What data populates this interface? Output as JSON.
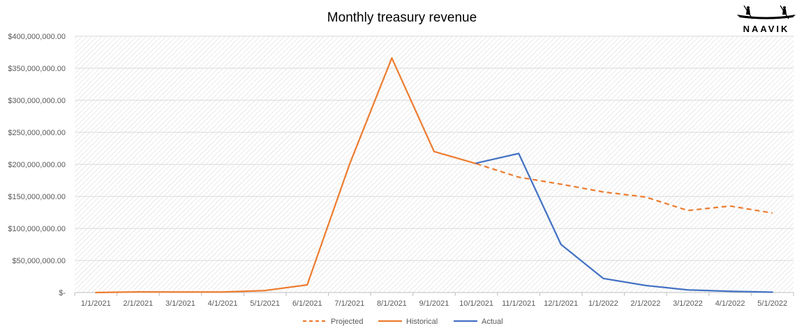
{
  "chart_data": {
    "type": "line",
    "title": "Monthly treasury revenue",
    "xlabel": "",
    "ylabel": "",
    "ylim": [
      0,
      400000000
    ],
    "yticks": [
      0,
      50000000,
      100000000,
      150000000,
      200000000,
      250000000,
      300000000,
      350000000,
      400000000
    ],
    "ytick_labels": [
      "$-",
      "$50,000,000.00",
      "$100,000,000.00",
      "$150,000,000.00",
      "$200,000,000.00",
      "$250,000,000.00",
      "$300,000,000.00",
      "$350,000,000.00",
      "$400,000,000.00"
    ],
    "categories": [
      "1/1/2021",
      "2/1/2021",
      "3/1/2021",
      "4/1/2021",
      "5/1/2021",
      "6/1/2021",
      "7/1/2021",
      "8/1/2021",
      "9/1/2021",
      "10/1/2021",
      "11/1/2021",
      "12/1/2021",
      "1/1/2022",
      "2/1/2022",
      "3/1/2022",
      "4/1/2022",
      "5/1/2022"
    ],
    "series": [
      {
        "name": "Projected",
        "color": "#ED7D31",
        "dash": "dashed",
        "values": [
          null,
          null,
          null,
          null,
          null,
          null,
          null,
          null,
          null,
          201000000,
          180000000,
          169000000,
          157000000,
          149000000,
          128000000,
          135000000,
          124000000
        ]
      },
      {
        "name": "Historical",
        "color": "#ED7D31",
        "dash": "solid",
        "values": [
          0,
          1000000,
          800000,
          800000,
          3000000,
          12000000,
          200000000,
          366000000,
          220000000,
          201000000,
          null,
          null,
          null,
          null,
          null,
          null,
          null
        ]
      },
      {
        "name": "Actual",
        "color": "#4472C4",
        "dash": "solid",
        "values": [
          null,
          null,
          null,
          null,
          null,
          null,
          null,
          null,
          null,
          202000000,
          217000000,
          75000000,
          22000000,
          11000000,
          4000000,
          2000000,
          500000
        ]
      }
    ],
    "legend_position": "bottom",
    "grid": true
  },
  "logo": {
    "text": "NAAVIK",
    "icon": "canoe-rowers-icon"
  }
}
